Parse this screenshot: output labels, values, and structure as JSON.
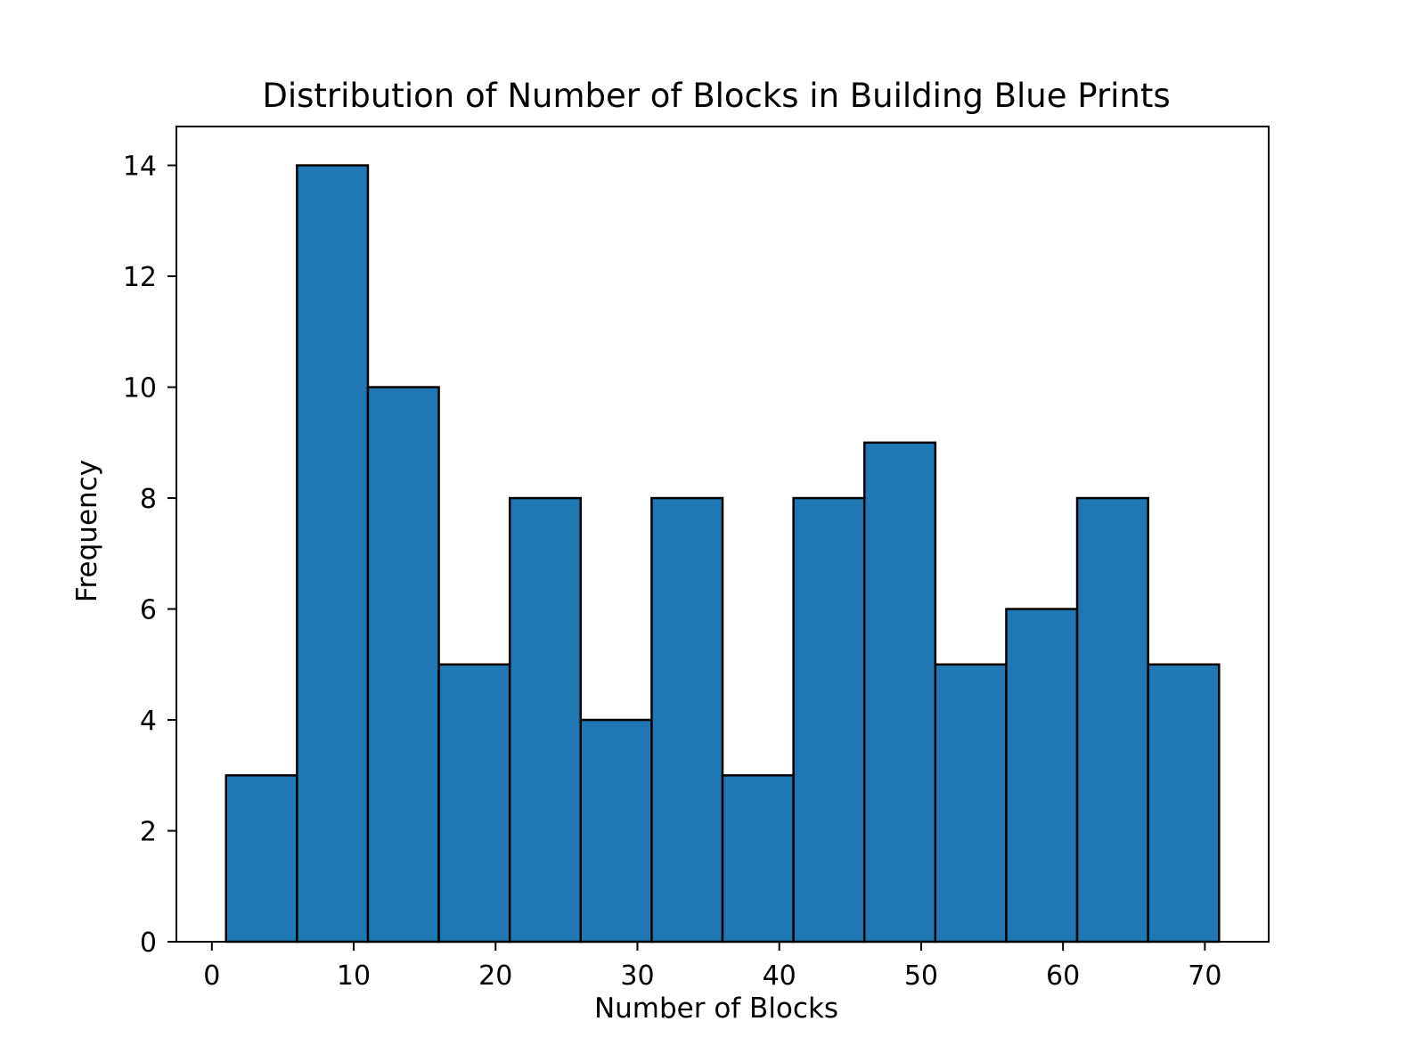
{
  "chart_data": {
    "type": "bar",
    "title": "Distribution of Number of Blocks in Building Blue Prints",
    "xlabel": "Number of Blocks",
    "ylabel": "Frequency",
    "bin_edges": [
      1,
      6,
      11,
      16,
      21,
      26,
      31,
      36,
      41,
      46,
      51,
      56,
      61,
      66,
      71
    ],
    "values": [
      3,
      14,
      10,
      5,
      8,
      4,
      8,
      3,
      8,
      9,
      5,
      6,
      8,
      5
    ],
    "xlim": [
      -2.5,
      74.5
    ],
    "ylim": [
      0,
      14.7
    ],
    "xticks": [
      0,
      10,
      20,
      30,
      40,
      50,
      60,
      70
    ],
    "yticks": [
      0,
      2,
      4,
      6,
      8,
      10,
      12,
      14
    ],
    "grid": false,
    "colors": {
      "bar_fill": "#1f77b4",
      "bar_edge": "#000000",
      "axes": "#000000"
    }
  }
}
